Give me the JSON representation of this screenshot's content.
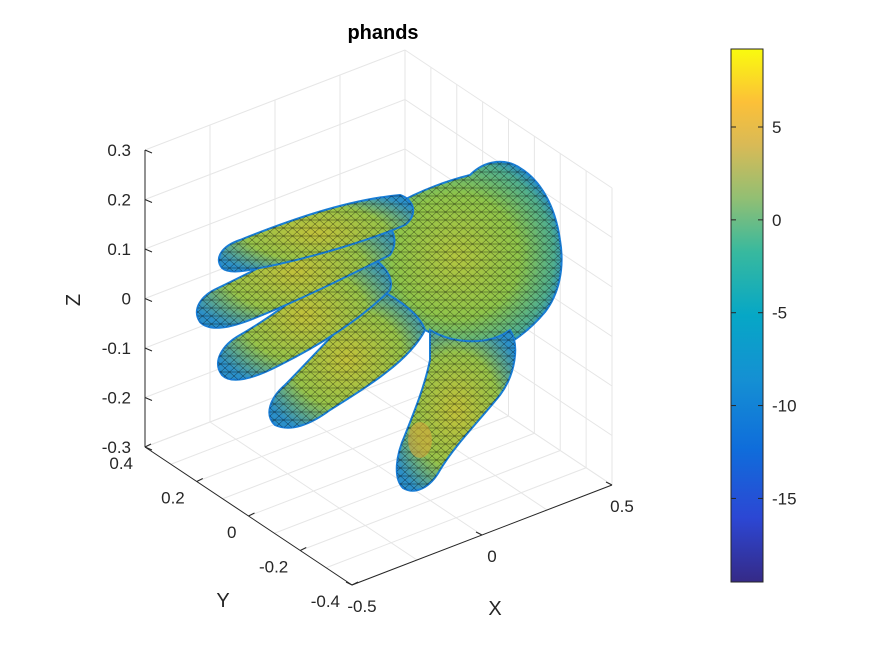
{
  "chart_data": {
    "type": "surface3d",
    "title": "phands",
    "xlabel": "X",
    "ylabel": "Y",
    "zlabel": "Z",
    "x_ticks": [
      -0.5,
      0,
      0.5
    ],
    "x_tick_labels": [
      "-0.5",
      "0",
      "0.5"
    ],
    "y_ticks": [
      -0.4,
      -0.2,
      0,
      0.2,
      0.4
    ],
    "y_tick_labels": [
      "-0.4",
      "-0.2",
      "0",
      "0.2",
      "0.4"
    ],
    "z_ticks": [
      -0.3,
      -0.2,
      -0.1,
      0,
      0.1,
      0.2,
      0.3
    ],
    "z_tick_labels": [
      "-0.3",
      "-0.2",
      "-0.1",
      "0",
      "0.1",
      "0.2",
      "0.3"
    ],
    "grid": true,
    "colormap": "parula",
    "colorbar": {
      "range": [
        -19.5,
        9.2
      ],
      "ticks": [
        5,
        0,
        -5,
        -10,
        -15
      ],
      "tick_labels": [
        "5",
        "0",
        "-5",
        "-10",
        "-15"
      ]
    },
    "colors": {
      "mesh_edge": "#000000",
      "surface_main": "#9bc43c",
      "surface_edge": "#1a7fd6",
      "axis": "#262626",
      "grid": "#e6e6e6"
    }
  }
}
